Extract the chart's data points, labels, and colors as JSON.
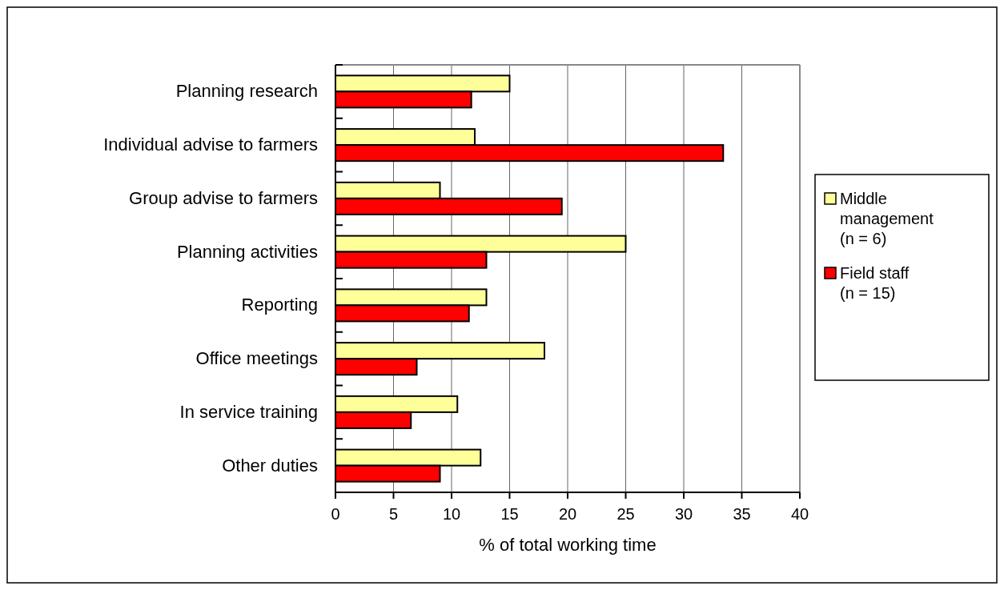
{
  "chart_data": {
    "type": "bar",
    "orientation": "horizontal",
    "xlabel": "% of total working time",
    "categories": [
      "Planning research",
      "Individual advise to farmers",
      "Group advise to farmers",
      "Planning activities",
      "Reporting",
      "Office meetings",
      "In service training",
      "Other duties"
    ],
    "series": [
      {
        "name": "Middle management (n = 6)",
        "color": "#ffff99",
        "values": [
          15,
          12,
          9,
          25,
          13,
          18,
          10.5,
          12.5
        ]
      },
      {
        "name": "Field staff (n = 15)",
        "color": "#ff0000",
        "values": [
          11.7,
          33.4,
          19.5,
          13,
          11.5,
          7,
          6.5,
          9
        ]
      }
    ],
    "xlim": [
      0,
      40
    ],
    "xticks": [
      0,
      5,
      10,
      15,
      20,
      25,
      30,
      35,
      40
    ],
    "grid": "x",
    "legend": "right"
  }
}
